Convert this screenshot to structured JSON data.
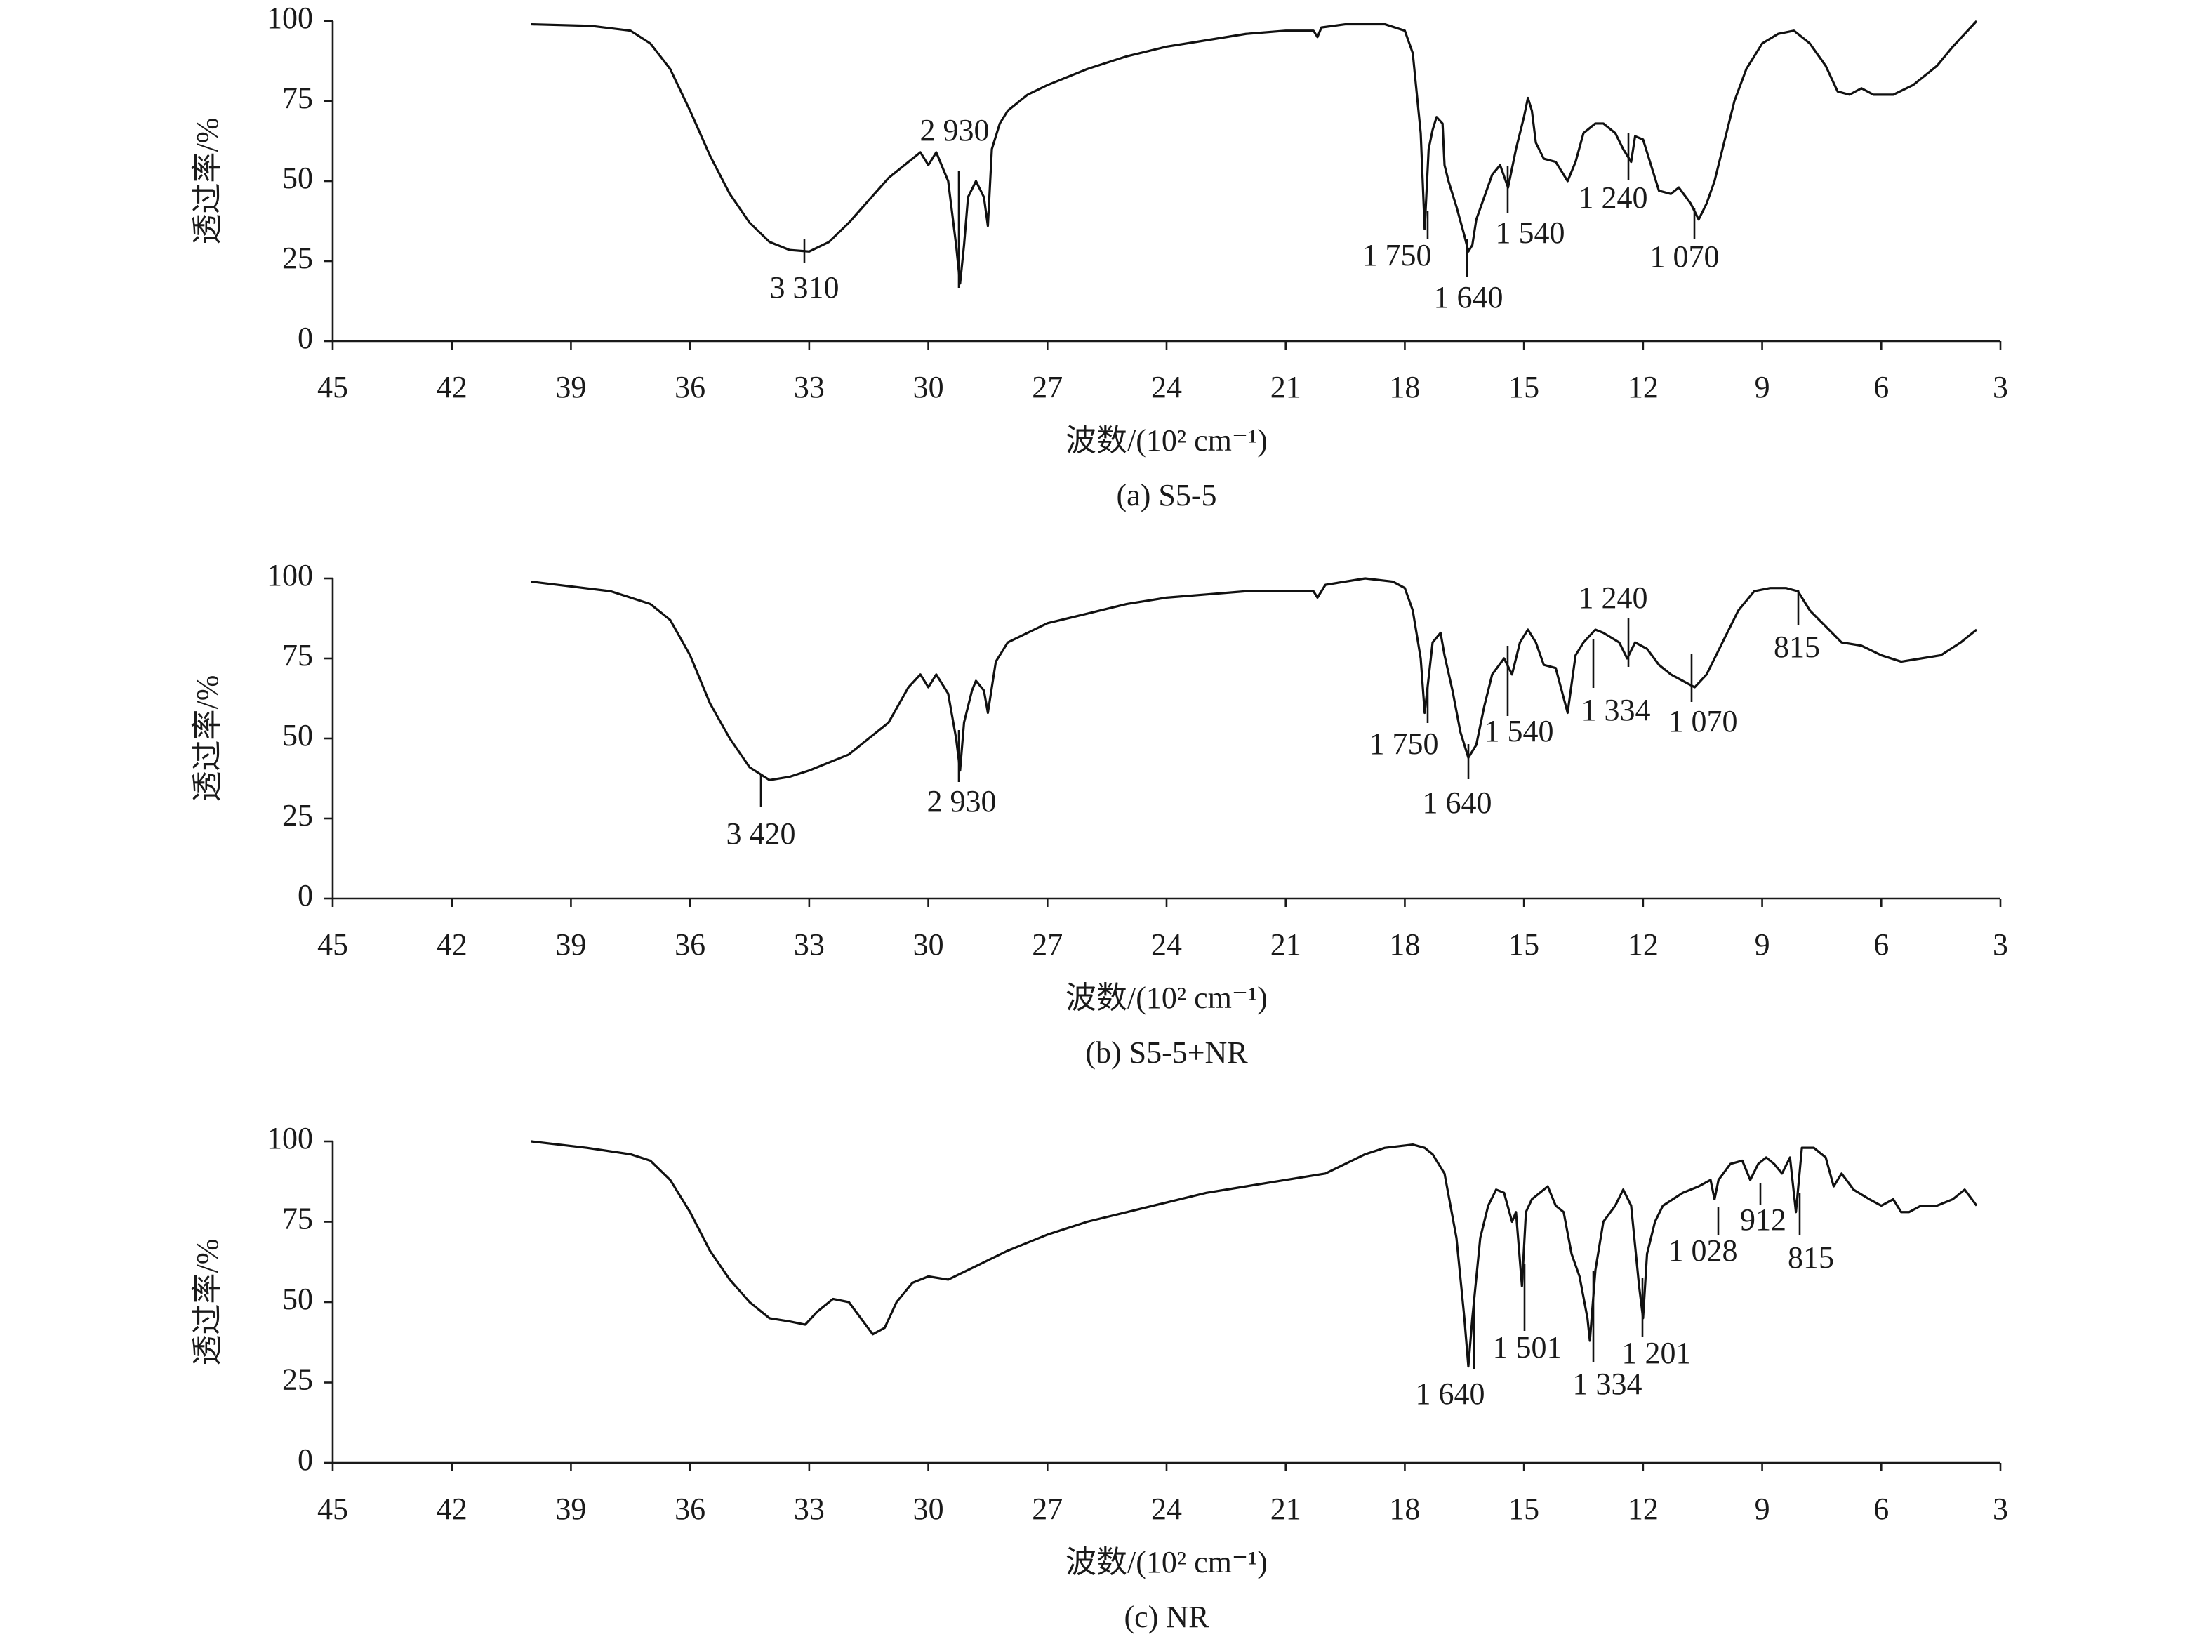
{
  "chart_data": [
    {
      "type": "line",
      "subtitle": "(a) S5-5",
      "xlabel": "波数/(10² cm⁻¹)",
      "ylabel": "透过率/%",
      "color": "#111111",
      "xlim": [
        45,
        3
      ],
      "xticks": [
        45,
        42,
        39,
        36,
        33,
        30,
        27,
        24,
        21,
        18,
        15,
        12,
        9,
        6,
        3
      ],
      "ylim": [
        0,
        100
      ],
      "yticks": [
        0,
        25,
        50,
        75,
        100
      ],
      "x": [
        40,
        38.5,
        37.5,
        37,
        36.5,
        36,
        35.5,
        35,
        34.5,
        34,
        33.5,
        33,
        32.5,
        32,
        31.5,
        31,
        30.5,
        30.2,
        30,
        29.8,
        29.5,
        29.3,
        29.2,
        29.1,
        29,
        28.8,
        28.6,
        28.5,
        28.4,
        28.2,
        28,
        27.5,
        27,
        26,
        25,
        24,
        23,
        22,
        21,
        20.3,
        20.2,
        20.1,
        19.5,
        18.5,
        18,
        17.8,
        17.6,
        17.5,
        17.4,
        17.3,
        17.2,
        17.05,
        17,
        16.9,
        16.7,
        16.5,
        16.4,
        16.3,
        16.2,
        16,
        15.8,
        15.6,
        15.4,
        15.2,
        15,
        14.9,
        14.8,
        14.7,
        14.5,
        14.2,
        13.9,
        13.7,
        13.5,
        13.2,
        13,
        12.7,
        12.5,
        12.3,
        12.2,
        12,
        11.8,
        11.6,
        11.3,
        11.1,
        10.8,
        10.6,
        10.4,
        10.2,
        10,
        9.7,
        9.4,
        9,
        8.6,
        8.2,
        7.8,
        7.4,
        7.1,
        6.8,
        6.5,
        6.2,
        5.7,
        5.2,
        4.6,
        4.2,
        3.9,
        3.6
      ],
      "values": [
        99,
        98.5,
        97,
        93,
        85,
        72,
        58,
        46,
        37,
        31,
        28.5,
        28,
        31,
        37,
        44,
        51,
        56,
        59,
        55,
        59,
        50,
        30,
        18,
        30,
        45,
        50,
        45,
        36,
        60,
        68,
        72,
        77,
        80,
        85,
        89,
        92,
        94,
        96,
        97,
        97,
        95,
        98,
        99,
        99,
        97,
        90,
        65,
        35,
        60,
        66,
        70,
        68,
        55,
        50,
        42,
        33,
        28,
        30,
        38,
        45,
        52,
        55,
        48,
        60,
        70,
        76,
        72,
        62,
        57,
        56,
        50,
        56,
        65,
        68,
        68,
        65,
        60,
        56,
        64,
        63,
        55,
        47,
        46,
        48,
        43,
        38,
        43,
        50,
        60,
        75,
        85,
        93,
        96,
        97,
        93,
        86,
        78,
        77,
        79,
        77,
        77,
        80,
        86,
        92,
        96,
        100
      ],
      "annotations": [
        "2 930",
        "3 310",
        "1 750",
        "1 640",
        "1 540",
        "1 240",
        "1 070"
      ]
    },
    {
      "type": "line",
      "subtitle": "(b) S5-5+NR",
      "xlabel": "波数/(10² cm⁻¹)",
      "ylabel": "透过率/%",
      "color": "#111111",
      "xlim": [
        45,
        3
      ],
      "xticks": [
        45,
        42,
        39,
        36,
        33,
        30,
        27,
        24,
        21,
        18,
        15,
        12,
        9,
        6,
        3
      ],
      "ylim": [
        0,
        100
      ],
      "yticks": [
        0,
        25,
        50,
        75,
        100
      ],
      "x": [
        40,
        38,
        37,
        36.5,
        36,
        35.5,
        35,
        34.5,
        34,
        33.5,
        33,
        32,
        31,
        30.5,
        30.2,
        30,
        29.8,
        29.5,
        29.3,
        29.2,
        29.1,
        28.9,
        28.8,
        28.6,
        28.5,
        28.3,
        28,
        27,
        26,
        25,
        24,
        23,
        22,
        20.3,
        20.2,
        20,
        19,
        18.3,
        18,
        17.8,
        17.6,
        17.5,
        17.3,
        17.1,
        17,
        16.8,
        16.6,
        16.4,
        16.2,
        16,
        15.8,
        15.5,
        15.3,
        15.1,
        14.9,
        14.7,
        14.5,
        14.2,
        13.9,
        13.7,
        13.5,
        13.2,
        13,
        12.6,
        12.4,
        12.2,
        11.9,
        11.6,
        11.3,
        11,
        10.7,
        10.4,
        10,
        9.6,
        9.2,
        8.8,
        8.4,
        8.1,
        7.8,
        7.4,
        7,
        6.5,
        6,
        5.5,
        5,
        4.5,
        4,
        3.6
      ],
      "values": [
        99,
        96,
        92,
        87,
        76,
        61,
        50,
        41,
        37,
        38,
        40,
        45,
        55,
        66,
        70,
        66,
        70,
        64,
        50,
        40,
        55,
        65,
        68,
        65,
        58,
        74,
        80,
        86,
        89,
        92,
        94,
        95,
        96,
        96,
        94,
        98,
        100,
        99,
        97,
        90,
        75,
        58,
        80,
        83,
        76,
        65,
        52,
        44,
        48,
        60,
        70,
        75,
        70,
        80,
        84,
        80,
        73,
        72,
        58,
        76,
        80,
        84,
        83,
        80,
        75,
        80,
        78,
        73,
        70,
        68,
        66,
        70,
        80,
        90,
        96,
        97,
        97,
        96,
        90,
        85,
        80,
        79,
        76,
        74,
        75,
        76,
        80,
        84
      ],
      "annotations": [
        "3 420",
        "2 930",
        "1 750",
        "1 640",
        "1 540",
        "1 334",
        "1 070",
        "1 240",
        "815"
      ]
    },
    {
      "type": "line",
      "subtitle": "(c) NR",
      "xlabel": "波数/(10² cm⁻¹)",
      "ylabel": "透过率/%",
      "color": "#111111",
      "xlim": [
        45,
        3
      ],
      "xticks": [
        45,
        42,
        39,
        36,
        33,
        30,
        27,
        24,
        21,
        18,
        15,
        12,
        9,
        6,
        3
      ],
      "ylim": [
        0,
        100
      ],
      "yticks": [
        0,
        25,
        50,
        75,
        100
      ],
      "x": [
        40,
        38.6,
        37.5,
        37,
        36.5,
        36,
        35.5,
        35,
        34.5,
        34,
        33.5,
        33.1,
        32.8,
        32.4,
        32,
        31.7,
        31.4,
        31.1,
        30.8,
        30.4,
        30,
        29.5,
        29,
        28.5,
        28,
        27,
        26,
        25,
        24,
        23,
        22,
        21,
        20,
        19,
        18.5,
        17.8,
        17.5,
        17.3,
        17,
        16.7,
        16.5,
        16.4,
        16.3,
        16.1,
        15.9,
        15.7,
        15.5,
        15.3,
        15.2,
        15.05,
        14.95,
        14.8,
        14.6,
        14.4,
        14.2,
        14,
        13.8,
        13.6,
        13.4,
        13.34,
        13.2,
        13,
        12.7,
        12.5,
        12.3,
        12.1,
        12,
        11.9,
        11.7,
        11.5,
        11,
        10.6,
        10.3,
        10.2,
        10.1,
        9.8,
        9.5,
        9.3,
        9.1,
        8.9,
        8.7,
        8.5,
        8.3,
        8.15,
        8,
        7.7,
        7.4,
        7.2,
        7,
        6.7,
        6.3,
        6,
        5.7,
        5.5,
        5.3,
        5,
        4.6,
        4.2,
        3.9,
        3.6
      ],
      "values": [
        100,
        98,
        96,
        94,
        88,
        78,
        66,
        57,
        50,
        45,
        44,
        43,
        47,
        51,
        50,
        45,
        40,
        42,
        50,
        56,
        58,
        57,
        60,
        63,
        66,
        71,
        75,
        78,
        81,
        84,
        86,
        88,
        90,
        96,
        98,
        99,
        98,
        96,
        90,
        70,
        45,
        30,
        45,
        70,
        80,
        85,
        84,
        75,
        78,
        55,
        78,
        82,
        84,
        86,
        80,
        78,
        65,
        58,
        45,
        38,
        60,
        75,
        80,
        85,
        80,
        55,
        45,
        65,
        75,
        80,
        84,
        86,
        88,
        82,
        88,
        93,
        94,
        88,
        93,
        95,
        93,
        90,
        95,
        78,
        98,
        98,
        95,
        86,
        90,
        85,
        82,
        80,
        82,
        78,
        78,
        80,
        80,
        82,
        85,
        80
      ],
      "annotations": [
        "1 640",
        "1 501",
        "1 334",
        "1 201",
        "1 028",
        "912",
        "815"
      ]
    }
  ]
}
